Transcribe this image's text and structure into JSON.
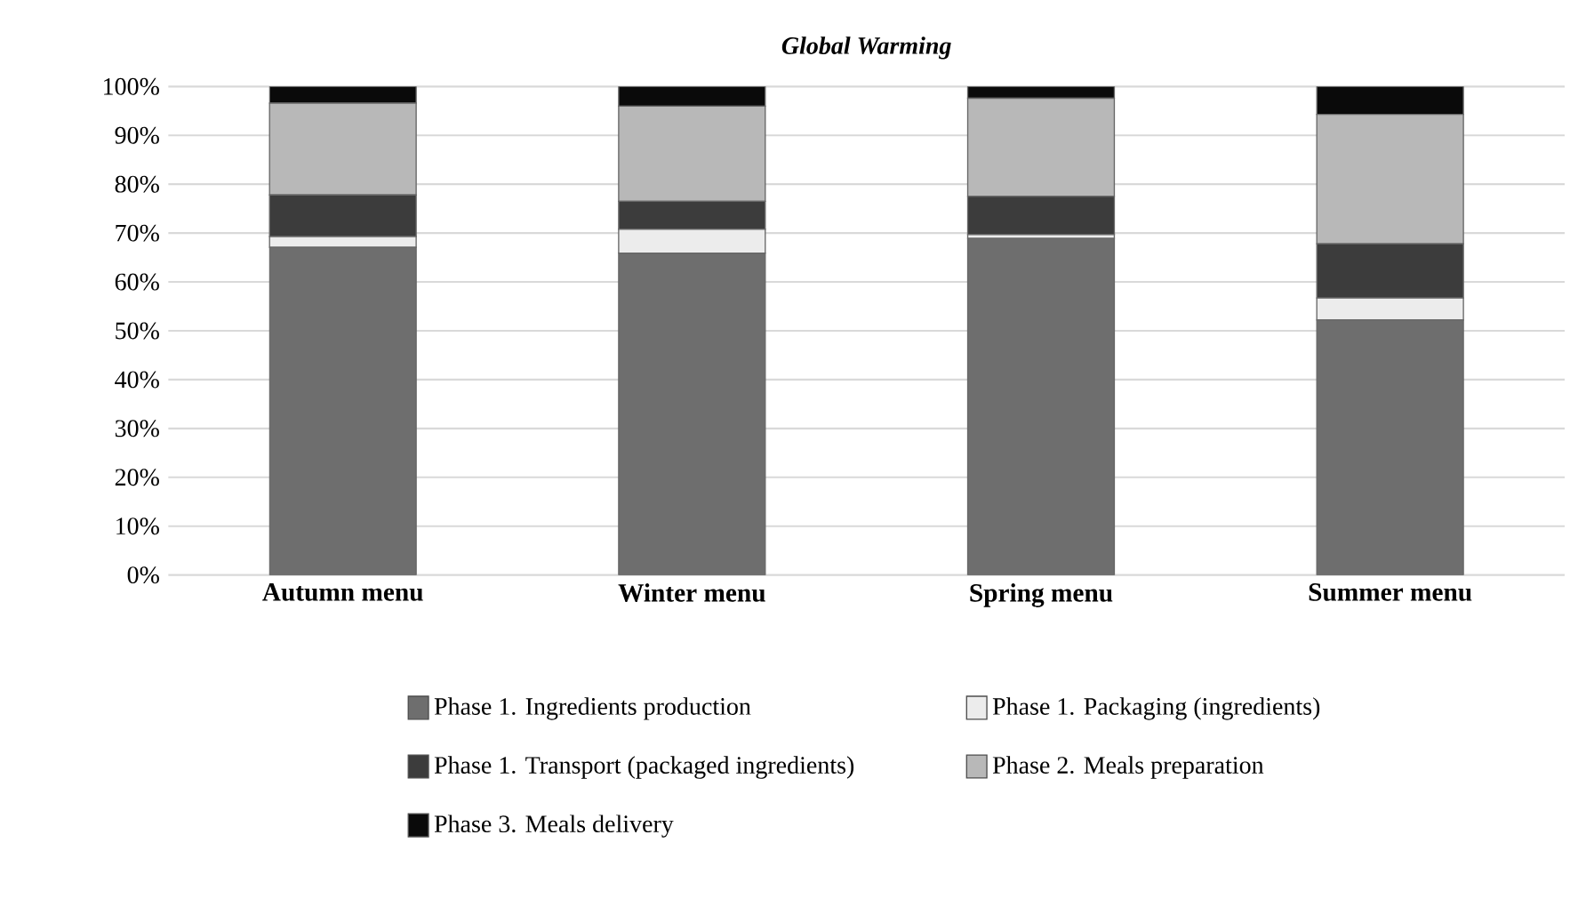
{
  "chart_data": {
    "type": "bar",
    "stacked": true,
    "title": "Global Warming",
    "categories": [
      "Autumn menu",
      "Winter menu",
      "Spring menu",
      "Summer menu"
    ],
    "series": [
      {
        "name": "Phase 1. Ingredients  production",
        "color": "#6e6e6e",
        "values": [
          67.1,
          65.9,
          68.9,
          52.2
        ]
      },
      {
        "name": "Phase 1. Packaging (ingredients)",
        "color": "#ececec",
        "values": [
          2.2,
          4.9,
          0.8,
          4.5
        ]
      },
      {
        "name": "Phase 1. Transport  (packaged ingredients)",
        "color": "#3c3c3c",
        "values": [
          8.5,
          5.7,
          7.8,
          11.1
        ]
      },
      {
        "name": "Phase 2. Meals preparation",
        "color": "#b8b8b8",
        "values": [
          18.8,
          19.5,
          20.1,
          26.5
        ]
      },
      {
        "name": "Phase 3. Meals delivery",
        "color": "#0a0a0a",
        "values": [
          3.4,
          4.0,
          2.4,
          5.7
        ]
      }
    ],
    "ylim": [
      0,
      100
    ],
    "yticks": [
      {
        "value": 0,
        "label": "0%"
      },
      {
        "value": 10,
        "label": "10%"
      },
      {
        "value": 20,
        "label": "20%"
      },
      {
        "value": 30,
        "label": "30%"
      },
      {
        "value": 40,
        "label": "40%"
      },
      {
        "value": 50,
        "label": "50%"
      },
      {
        "value": 60,
        "label": "60%"
      },
      {
        "value": 70,
        "label": "70%"
      },
      {
        "value": 80,
        "label": "80%"
      },
      {
        "value": 90,
        "label": "90%"
      },
      {
        "value": 100,
        "label": "100%"
      }
    ],
    "grid": "y",
    "legend": "bottom"
  }
}
